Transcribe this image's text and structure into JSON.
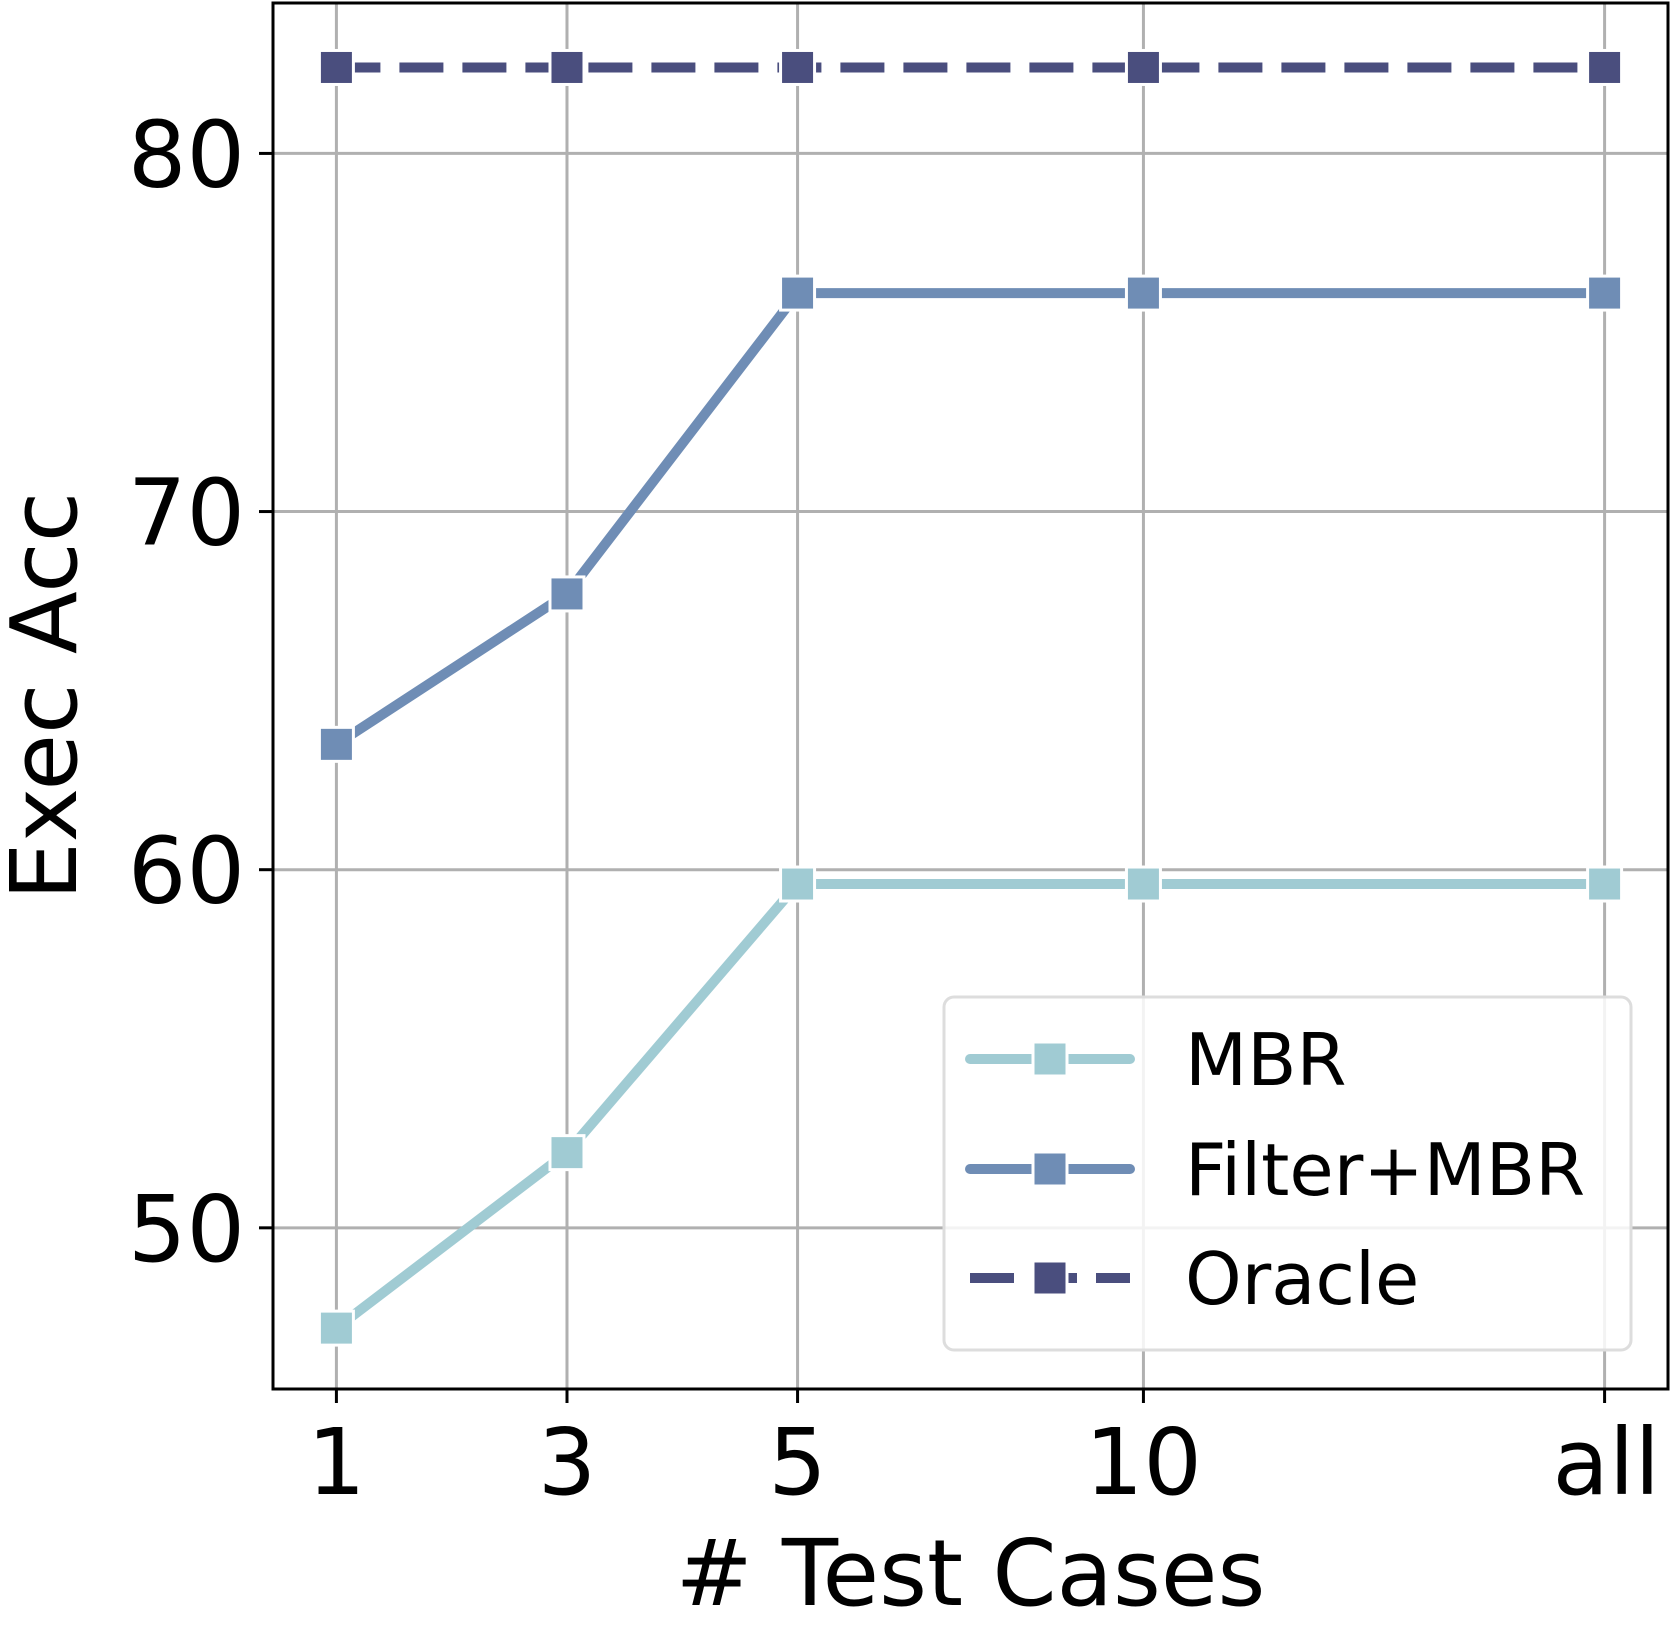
{
  "chart_data": {
    "type": "line",
    "title": "",
    "xlabel": "# Test Cases",
    "ylabel": "Exec Acc",
    "categories": [
      "1",
      "3",
      "5",
      "10",
      "all"
    ],
    "x_positions": [
      1,
      3,
      5,
      8,
      12
    ],
    "xlim": [
      0.45,
      12.55
    ],
    "ylim": [
      45.5,
      84.2
    ],
    "yticks": [
      50,
      60,
      70,
      80
    ],
    "grid": true,
    "legend": "lower right",
    "series": [
      {
        "name": "MBR",
        "values": [
          47.2,
          52.1,
          59.6,
          59.6,
          59.6
        ],
        "color": "#a0cbd3",
        "dashed": false
      },
      {
        "name": "Filter+MBR",
        "values": [
          63.5,
          67.7,
          76.1,
          76.1,
          76.1
        ],
        "color": "#6f8db5",
        "dashed": false
      },
      {
        "name": "Oracle",
        "values": [
          82.4,
          82.4,
          82.4,
          82.4,
          82.4
        ],
        "color": "#4a4e7e",
        "dashed": true
      }
    ]
  }
}
